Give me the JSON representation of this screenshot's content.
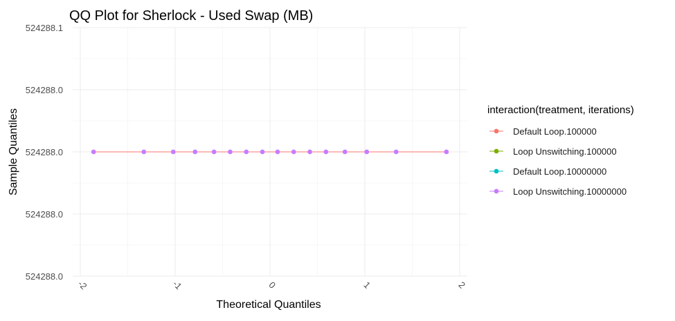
{
  "chart_data": {
    "type": "line",
    "title": "QQ Plot for Sherlock - Used Swap (MB)",
    "xlabel": "Theoretical Quantiles",
    "ylabel": "Sample Quantiles",
    "xlim": [
      -2,
      2
    ],
    "x_ticks": [
      "-2",
      "-1",
      "0",
      "1",
      "2"
    ],
    "y_tick_labels": [
      "524288.1",
      "524288.0",
      "524288.0",
      "524288.0",
      "524288.0"
    ],
    "grid": true,
    "legend": {
      "title": "interaction(treatment, iterations)",
      "placement": "right",
      "entries": [
        {
          "label": "Default Loop.100000",
          "color": "#F8766D"
        },
        {
          "label": "Loop Unswitching.100000",
          "color": "#7CAE00"
        },
        {
          "label": "Default Loop.10000000",
          "color": "#00BFC4"
        },
        {
          "label": "Loop Unswitching.10000000",
          "color": "#C77CFF"
        }
      ]
    },
    "series": [
      {
        "name": "Loop Unswitching.10000000",
        "color": "#C77CFF",
        "x": [
          -1.86,
          -1.33,
          -1.02,
          -0.79,
          -0.59,
          -0.42,
          -0.25,
          -0.08,
          0.08,
          0.25,
          0.42,
          0.59,
          0.79,
          1.02,
          1.33,
          1.86
        ],
        "y": [
          524288,
          524288,
          524288,
          524288,
          524288,
          524288,
          524288,
          524288,
          524288,
          524288,
          524288,
          524288,
          524288,
          524288,
          524288,
          524288
        ]
      }
    ],
    "line_color": "#F8766D"
  }
}
